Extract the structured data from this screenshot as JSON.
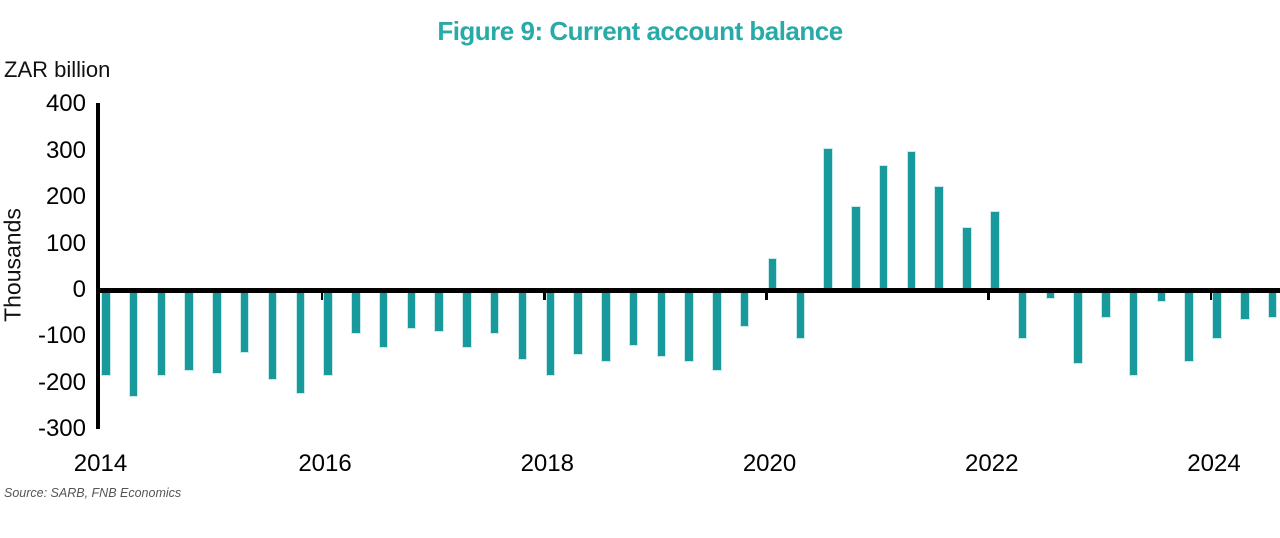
{
  "title": "Figure 9: Current account balance",
  "unit_label": "ZAR billion",
  "y_axis_title": "Thousands",
  "source_note": "Source: SARB, FNB Economics",
  "colors": {
    "title_teal": "#28aba8",
    "bar_fill": "#18999b",
    "bar_edge": "#c9eaea",
    "axis_black": "#000000",
    "source_gray": "#555555"
  },
  "chart_data": {
    "type": "bar",
    "title": "Figure 9: Current account balance",
    "ylabel": "Thousands",
    "unit_label": "ZAR billion",
    "xlabel": "",
    "ylim": [
      -300,
      400
    ],
    "grid": false,
    "legend": "none",
    "y_ticks": [
      400,
      300,
      200,
      100,
      0,
      -100,
      -200,
      -300
    ],
    "x_tick_labels": [
      "2014",
      "2016",
      "2018",
      "2020",
      "2022",
      "2024"
    ],
    "bar_color": "#18999b",
    "x": [
      "2014 Q1",
      "2014 Q2",
      "2014 Q3",
      "2014 Q4",
      "2015 Q1",
      "2015 Q2",
      "2015 Q3",
      "2015 Q4",
      "2016 Q1",
      "2016 Q2",
      "2016 Q3",
      "2016 Q4",
      "2017 Q1",
      "2017 Q2",
      "2017 Q3",
      "2017 Q4",
      "2018 Q1",
      "2018 Q2",
      "2018 Q3",
      "2018 Q4",
      "2019 Q1",
      "2019 Q2",
      "2019 Q3",
      "2019 Q4",
      "2020 Q1",
      "2020 Q2",
      "2020 Q3",
      "2020 Q4",
      "2021 Q1",
      "2021 Q2",
      "2021 Q3",
      "2021 Q4",
      "2022 Q1",
      "2022 Q2",
      "2022 Q3",
      "2022 Q4",
      "2023 Q1",
      "2023 Q2",
      "2023 Q3",
      "2023 Q4",
      "2024 Q1",
      "2024 Q2",
      "2024 Q3"
    ],
    "values": [
      -185,
      -230,
      -185,
      -175,
      -180,
      -135,
      -195,
      -225,
      -185,
      -95,
      -125,
      -85,
      -90,
      -125,
      -95,
      -150,
      -185,
      -140,
      -155,
      -120,
      -145,
      -155,
      -175,
      -80,
      70,
      -105,
      305,
      180,
      270,
      300,
      225,
      135,
      170,
      -105,
      -20,
      -160,
      -60,
      -185,
      -25,
      -155,
      -105,
      -65,
      -60
    ]
  }
}
